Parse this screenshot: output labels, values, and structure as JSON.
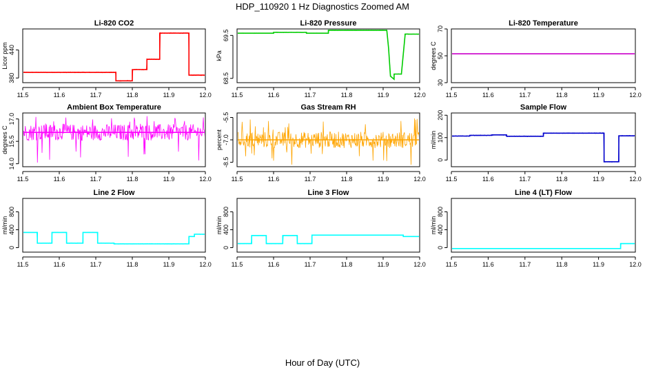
{
  "figure": {
    "title": "HDP_110920  1 Hz Diagnostics Zoomed AM",
    "xlabel": "Hour of Day (UTC)"
  },
  "chart_data": [
    {
      "type": "line",
      "title": "Li-820 CO2",
      "xlabel": "",
      "ylabel": "Licor ppm",
      "xlim": [
        11.5,
        12.0
      ],
      "ylim": [
        370,
        485
      ],
      "xticks": [
        "11.5",
        "11.6",
        "11.7",
        "11.8",
        "11.9",
        "12.0"
      ],
      "yticks": [
        {
          "v": 380,
          "label": "380"
        },
        {
          "v": 440,
          "label": "440"
        }
      ],
      "color": "#ff0000",
      "noise": 0.8,
      "series": [
        {
          "x": [
            11.5,
            11.755,
            11.755,
            11.8,
            11.8,
            11.84,
            11.84,
            11.875,
            11.875,
            11.955,
            11.955,
            12.0
          ],
          "y": [
            392,
            392,
            374,
            374,
            398,
            398,
            420,
            420,
            476,
            476,
            386,
            386
          ]
        }
      ]
    },
    {
      "type": "line",
      "title": "Li-820 Pressure",
      "xlabel": "",
      "ylabel": "kPa",
      "xlim": [
        11.5,
        12.0
      ],
      "ylim": [
        68.4,
        69.65
      ],
      "xticks": [
        "11.5",
        "11.6",
        "11.7",
        "11.8",
        "11.9",
        "12.0"
      ],
      "yticks": [
        {
          "v": 68.5,
          "label": "68.5"
        },
        {
          "v": 69.5,
          "label": "69.5"
        }
      ],
      "color": "#00cc00",
      "noise": 0.006,
      "series": [
        {
          "x": [
            11.5,
            11.6,
            11.6,
            11.69,
            11.69,
            11.75,
            11.75,
            11.91,
            11.915,
            11.92,
            11.93,
            11.93,
            11.95,
            11.95,
            11.96,
            11.96,
            12.0
          ],
          "y": [
            69.55,
            69.55,
            69.57,
            69.57,
            69.55,
            69.55,
            69.62,
            69.62,
            69.2,
            68.55,
            68.48,
            68.6,
            68.6,
            68.6,
            69.5,
            69.53,
            69.53
          ]
        }
      ]
    },
    {
      "type": "line",
      "title": "Li-820 Temperature",
      "xlabel": "",
      "ylabel": "degrees C",
      "xlim": [
        11.5,
        12.0
      ],
      "ylim": [
        30,
        70
      ],
      "xticks": [
        "11.5",
        "11.6",
        "11.7",
        "11.8",
        "11.9",
        "12.0"
      ],
      "yticks": [
        {
          "v": 30,
          "label": "30"
        },
        {
          "v": 50,
          "label": "50"
        },
        {
          "v": 70,
          "label": "70"
        }
      ],
      "color": "#cc00cc",
      "noise": 0,
      "series": [
        {
          "x": [
            11.5,
            12.0
          ],
          "y": [
            51.5,
            51.5
          ]
        }
      ]
    },
    {
      "type": "line",
      "title": "Ambient Box Temperature",
      "xlabel": "",
      "ylabel": "degrees C",
      "xlim": [
        11.5,
        12.0
      ],
      "ylim": [
        13.8,
        17.4
      ],
      "xticks": [
        "11.5",
        "11.6",
        "11.7",
        "11.8",
        "11.9",
        "12.0"
      ],
      "yticks": [
        {
          "v": 14.0,
          "label": "14.0"
        },
        {
          "v": 15.5,
          "label": "15.5"
        },
        {
          "v": 17.0,
          "label": "17.0"
        }
      ],
      "color": "#ff00ff",
      "noise": 0.55,
      "spikes": {
        "low": 14.0,
        "high": 17.2
      },
      "series": [
        {
          "x": [
            11.5,
            12.0
          ],
          "y": [
            16.1,
            16.1
          ]
        }
      ]
    },
    {
      "type": "line",
      "title": "Gas Stream RH",
      "xlabel": "",
      "ylabel": "percent",
      "xlim": [
        11.5,
        12.0
      ],
      "ylim": [
        -8.8,
        -5.2
      ],
      "xticks": [
        "11.5",
        "11.6",
        "11.7",
        "11.8",
        "11.9",
        "12.0"
      ],
      "yticks": [
        {
          "v": -8.5,
          "label": "-8.5"
        },
        {
          "v": -7.0,
          "label": "-7.0"
        },
        {
          "v": -5.5,
          "label": "-5.5"
        }
      ],
      "color": "#ffa500",
      "noise": 0.55,
      "spikes": {
        "low": -8.7,
        "high": -5.5
      },
      "series": [
        {
          "x": [
            11.5,
            12.0
          ],
          "y": [
            -7.0,
            -7.0
          ]
        }
      ]
    },
    {
      "type": "line",
      "title": "Sample Flow",
      "xlabel": "",
      "ylabel": "ml/min",
      "xlim": [
        11.5,
        12.0
      ],
      "ylim": [
        -30,
        210
      ],
      "xticks": [
        "11.5",
        "11.6",
        "11.7",
        "11.8",
        "11.9",
        "12.0"
      ],
      "yticks": [
        {
          "v": 0,
          "label": "0"
        },
        {
          "v": 100,
          "label": "100"
        },
        {
          "v": 200,
          "label": "200"
        }
      ],
      "color": "#0000cc",
      "noise": 1.5,
      "series": [
        {
          "x": [
            11.5,
            11.55,
            11.55,
            11.61,
            11.61,
            11.65,
            11.65,
            11.75,
            11.75,
            11.915,
            11.915,
            11.955,
            11.955,
            12.0
          ],
          "y": [
            107,
            107,
            110,
            110,
            112,
            112,
            106,
            106,
            120,
            120,
            -8,
            -8,
            108,
            108
          ]
        }
      ]
    },
    {
      "type": "line",
      "title": "Line 2 Flow",
      "xlabel": "",
      "ylabel": "ml/min",
      "xlim": [
        11.5,
        12.0
      ],
      "ylim": [
        -100,
        1100
      ],
      "xticks": [
        "11.5",
        "11.6",
        "11.7",
        "11.8",
        "11.9",
        "12.0"
      ],
      "yticks": [
        {
          "v": 0,
          "label": "0"
        },
        {
          "v": 400,
          "label": "400"
        },
        {
          "v": 800,
          "label": "800"
        }
      ],
      "color": "#00ffff",
      "noise": 4,
      "series": [
        {
          "x": [
            11.5,
            11.54,
            11.54,
            11.58,
            11.58,
            11.62,
            11.62,
            11.665,
            11.665,
            11.705,
            11.705,
            11.75,
            11.75,
            11.955,
            11.955,
            11.97,
            11.97,
            12.0
          ],
          "y": [
            340,
            340,
            100,
            100,
            340,
            340,
            100,
            100,
            340,
            340,
            100,
            100,
            85,
            85,
            250,
            250,
            300,
            300
          ]
        }
      ]
    },
    {
      "type": "line",
      "title": "Line 3 Flow",
      "xlabel": "",
      "ylabel": "ml/min",
      "xlim": [
        11.5,
        12.0
      ],
      "ylim": [
        -100,
        1100
      ],
      "xticks": [
        "11.5",
        "11.6",
        "11.7",
        "11.8",
        "11.9",
        "12.0"
      ],
      "yticks": [
        {
          "v": 0,
          "label": "0"
        },
        {
          "v": 400,
          "label": "400"
        },
        {
          "v": 800,
          "label": "800"
        }
      ],
      "color": "#00ffff",
      "noise": 4,
      "series": [
        {
          "x": [
            11.5,
            11.54,
            11.54,
            11.58,
            11.58,
            11.625,
            11.625,
            11.665,
            11.665,
            11.705,
            11.705,
            11.955,
            11.955,
            12.0
          ],
          "y": [
            90,
            90,
            270,
            270,
            90,
            90,
            270,
            270,
            90,
            90,
            280,
            280,
            250,
            250
          ]
        }
      ]
    },
    {
      "type": "line",
      "title": "Line 4 (LT) Flow",
      "xlabel": "",
      "ylabel": "ml/min",
      "xlim": [
        11.5,
        12.0
      ],
      "ylim": [
        -100,
        1100
      ],
      "xticks": [
        "11.5",
        "11.6",
        "11.7",
        "11.8",
        "11.9",
        "12.0"
      ],
      "yticks": [
        {
          "v": 0,
          "label": "0"
        },
        {
          "v": 400,
          "label": "400"
        },
        {
          "v": 800,
          "label": "800"
        }
      ],
      "color": "#00ffff",
      "noise": 2,
      "series": [
        {
          "x": [
            11.5,
            11.96,
            11.96,
            12.0
          ],
          "y": [
            -20,
            -20,
            90,
            90
          ]
        }
      ]
    }
  ]
}
